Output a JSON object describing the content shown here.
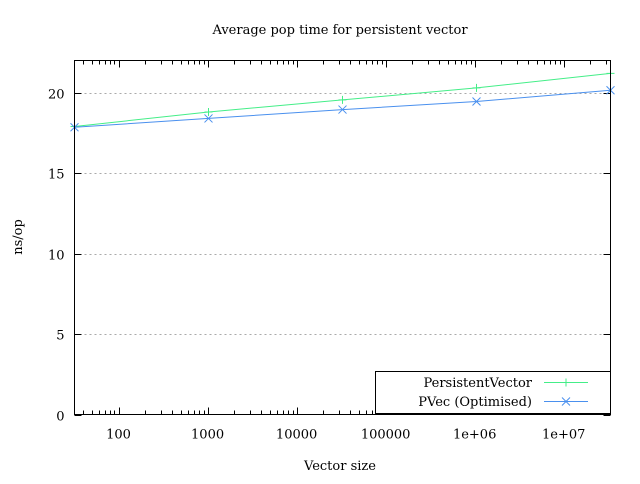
{
  "chart_data": {
    "type": "line",
    "title": "Average pop time for persistent vector",
    "xlabel": "Vector size",
    "ylabel": "ns/op",
    "xscale": "log",
    "xlim": [
      32,
      33554432
    ],
    "ylim": [
      0,
      22
    ],
    "x_ticks": [
      100,
      1000,
      10000,
      100000,
      1000000,
      10000000
    ],
    "x_tick_labels": [
      "100",
      "1000",
      "10000",
      "100000",
      "1e+06",
      "1e+07"
    ],
    "y_ticks": [
      0,
      5,
      10,
      15,
      20
    ],
    "y_tick_labels": [
      "0",
      "5",
      "10",
      "15",
      "20"
    ],
    "grid": "horizontal dotted",
    "legend_position": "bottom-right",
    "x": [
      32,
      1024,
      32768,
      1048576,
      33554432
    ],
    "series": [
      {
        "name": "PersistentVector",
        "color": "#44ee88",
        "marker": "plus",
        "values": [
          17.9,
          18.8,
          19.55,
          20.3,
          21.2
        ]
      },
      {
        "name": "PVec (Optimised)",
        "color": "#4a90ee",
        "marker": "x",
        "values": [
          17.85,
          18.4,
          18.95,
          19.45,
          20.15
        ]
      }
    ]
  }
}
